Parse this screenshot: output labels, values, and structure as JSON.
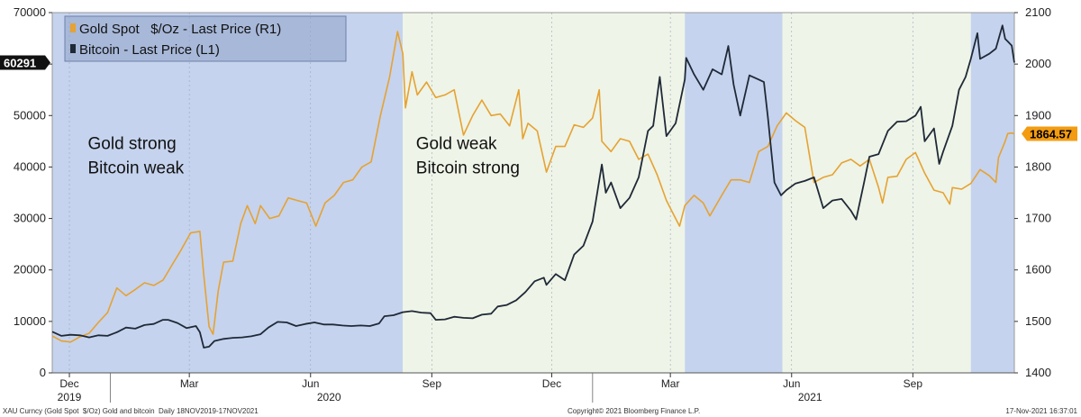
{
  "chart_data": {
    "type": "line",
    "x_range": [
      "2019-11-18",
      "2021-11-17"
    ],
    "left_axis": {
      "ticks": [
        0,
        10000,
        20000,
        30000,
        40000,
        50000,
        60000,
        70000
      ],
      "ylim": [
        0,
        70000
      ]
    },
    "right_axis": {
      "ticks": [
        1400,
        1500,
        1600,
        1700,
        1800,
        1900,
        2000,
        2100
      ],
      "ylim": [
        1400,
        2100
      ]
    },
    "x_tick_labels": [
      {
        "date": "2019-12-01",
        "label": "Dec"
      },
      {
        "date": "2020-03-01",
        "label": "Mar"
      },
      {
        "date": "2020-06-01",
        "label": "Jun"
      },
      {
        "date": "2020-09-01",
        "label": "Sep"
      },
      {
        "date": "2020-12-01",
        "label": "Dec"
      },
      {
        "date": "2021-03-01",
        "label": "Mar"
      },
      {
        "date": "2021-06-01",
        "label": "Jun"
      },
      {
        "date": "2021-09-01",
        "label": "Sep"
      }
    ],
    "year_labels": [
      {
        "date": "2019-12-01",
        "label": "2019"
      },
      {
        "date": "2020-06-15",
        "label": "2020"
      },
      {
        "date": "2021-06-15",
        "label": "2021"
      }
    ],
    "regions": [
      {
        "start": "2019-11-18",
        "end": "2020-08-10",
        "color": "#c5d3ee"
      },
      {
        "start": "2020-08-10",
        "end": "2021-03-12",
        "color": "#eef4e7"
      },
      {
        "start": "2021-03-12",
        "end": "2021-05-25",
        "color": "#c5d3ee"
      },
      {
        "start": "2021-05-25",
        "end": "2021-10-15",
        "color": "#eef4e7"
      },
      {
        "start": "2021-10-15",
        "end": "2021-11-17",
        "color": "#c5d3ee"
      }
    ],
    "annotations": [
      {
        "lines": [
          "Gold strong",
          "Bitcoin weak"
        ],
        "date": "2019-12-15",
        "value": 40000
      },
      {
        "lines": [
          "Gold weak",
          "Bitcoin strong"
        ],
        "date": "2020-08-20",
        "value": 40000
      }
    ],
    "legend": {
      "position": "top-left"
    },
    "series": [
      {
        "name": "Gold Spot   $/Oz - Last Price (R1)",
        "axis": "right",
        "color": "#e6a232",
        "points": [
          [
            "2019-11-18",
            1472
          ],
          [
            "2019-11-25",
            1462
          ],
          [
            "2019-12-02",
            1460
          ],
          [
            "2019-12-09",
            1470
          ],
          [
            "2019-12-16",
            1477
          ],
          [
            "2019-12-23",
            1498
          ],
          [
            "2019-12-30",
            1517
          ],
          [
            "2020-01-06",
            1565
          ],
          [
            "2020-01-13",
            1550
          ],
          [
            "2020-01-20",
            1562
          ],
          [
            "2020-01-27",
            1575
          ],
          [
            "2020-02-03",
            1570
          ],
          [
            "2020-02-10",
            1580
          ],
          [
            "2020-02-17",
            1610
          ],
          [
            "2020-02-24",
            1640
          ],
          [
            "2020-03-02",
            1672
          ],
          [
            "2020-03-09",
            1675
          ],
          [
            "2020-03-12",
            1590
          ],
          [
            "2020-03-16",
            1490
          ],
          [
            "2020-03-19",
            1475
          ],
          [
            "2020-03-23",
            1560
          ],
          [
            "2020-03-27",
            1615
          ],
          [
            "2020-04-03",
            1617
          ],
          [
            "2020-04-09",
            1690
          ],
          [
            "2020-04-14",
            1725
          ],
          [
            "2020-04-20",
            1690
          ],
          [
            "2020-04-24",
            1725
          ],
          [
            "2020-05-01",
            1700
          ],
          [
            "2020-05-08",
            1705
          ],
          [
            "2020-05-15",
            1740
          ],
          [
            "2020-05-22",
            1735
          ],
          [
            "2020-05-29",
            1730
          ],
          [
            "2020-06-05",
            1685
          ],
          [
            "2020-06-12",
            1730
          ],
          [
            "2020-06-19",
            1745
          ],
          [
            "2020-06-26",
            1770
          ],
          [
            "2020-07-03",
            1775
          ],
          [
            "2020-07-10",
            1800
          ],
          [
            "2020-07-17",
            1810
          ],
          [
            "2020-07-24",
            1900
          ],
          [
            "2020-07-31",
            1975
          ],
          [
            "2020-08-06",
            2063
          ],
          [
            "2020-08-10",
            2020
          ],
          [
            "2020-08-12",
            1915
          ],
          [
            "2020-08-17",
            1985
          ],
          [
            "2020-08-21",
            1940
          ],
          [
            "2020-08-28",
            1965
          ],
          [
            "2020-09-04",
            1935
          ],
          [
            "2020-09-11",
            1940
          ],
          [
            "2020-09-18",
            1950
          ],
          [
            "2020-09-25",
            1862
          ],
          [
            "2020-10-02",
            1900
          ],
          [
            "2020-10-09",
            1930
          ],
          [
            "2020-10-16",
            1900
          ],
          [
            "2020-10-23",
            1903
          ],
          [
            "2020-10-30",
            1880
          ],
          [
            "2020-11-06",
            1950
          ],
          [
            "2020-11-09",
            1855
          ],
          [
            "2020-11-13",
            1885
          ],
          [
            "2020-11-20",
            1870
          ],
          [
            "2020-11-27",
            1790
          ],
          [
            "2020-12-04",
            1840
          ],
          [
            "2020-12-11",
            1840
          ],
          [
            "2020-12-18",
            1882
          ],
          [
            "2020-12-25",
            1877
          ],
          [
            "2021-01-01",
            1895
          ],
          [
            "2021-01-06",
            1950
          ],
          [
            "2021-01-08",
            1850
          ],
          [
            "2021-01-15",
            1830
          ],
          [
            "2021-01-22",
            1855
          ],
          [
            "2021-01-29",
            1850
          ],
          [
            "2021-02-05",
            1815
          ],
          [
            "2021-02-12",
            1825
          ],
          [
            "2021-02-19",
            1785
          ],
          [
            "2021-02-26",
            1735
          ],
          [
            "2021-03-05",
            1700
          ],
          [
            "2021-03-08",
            1685
          ],
          [
            "2021-03-12",
            1725
          ],
          [
            "2021-03-19",
            1745
          ],
          [
            "2021-03-26",
            1730
          ],
          [
            "2021-03-31",
            1705
          ],
          [
            "2021-04-09",
            1745
          ],
          [
            "2021-04-16",
            1775
          ],
          [
            "2021-04-23",
            1775
          ],
          [
            "2021-04-30",
            1770
          ],
          [
            "2021-05-07",
            1830
          ],
          [
            "2021-05-14",
            1840
          ],
          [
            "2021-05-21",
            1880
          ],
          [
            "2021-05-28",
            1905
          ],
          [
            "2021-06-04",
            1890
          ],
          [
            "2021-06-11",
            1877
          ],
          [
            "2021-06-18",
            1770
          ],
          [
            "2021-06-25",
            1780
          ],
          [
            "2021-07-02",
            1785
          ],
          [
            "2021-07-09",
            1808
          ],
          [
            "2021-07-16",
            1815
          ],
          [
            "2021-07-23",
            1802
          ],
          [
            "2021-07-30",
            1815
          ],
          [
            "2021-08-06",
            1760
          ],
          [
            "2021-08-09",
            1730
          ],
          [
            "2021-08-13",
            1780
          ],
          [
            "2021-08-20",
            1782
          ],
          [
            "2021-08-27",
            1815
          ],
          [
            "2021-09-03",
            1828
          ],
          [
            "2021-09-10",
            1788
          ],
          [
            "2021-09-17",
            1755
          ],
          [
            "2021-09-24",
            1750
          ],
          [
            "2021-09-29",
            1728
          ],
          [
            "2021-10-01",
            1760
          ],
          [
            "2021-10-08",
            1757
          ],
          [
            "2021-10-15",
            1768
          ],
          [
            "2021-10-22",
            1795
          ],
          [
            "2021-10-29",
            1783
          ],
          [
            "2021-11-03",
            1770
          ],
          [
            "2021-11-05",
            1818
          ],
          [
            "2021-11-10",
            1850
          ],
          [
            "2021-11-12",
            1865
          ],
          [
            "2021-11-15",
            1866
          ],
          [
            "2021-11-17",
            1864.57
          ]
        ]
      },
      {
        "name": "Bitcoin - Last Price (L1)",
        "axis": "left",
        "color": "#1f2937",
        "points": [
          [
            "2019-11-18",
            8000
          ],
          [
            "2019-11-25",
            7200
          ],
          [
            "2019-12-02",
            7400
          ],
          [
            "2019-12-09",
            7300
          ],
          [
            "2019-12-16",
            6900
          ],
          [
            "2019-12-23",
            7300
          ],
          [
            "2019-12-30",
            7200
          ],
          [
            "2020-01-06",
            7900
          ],
          [
            "2020-01-13",
            8800
          ],
          [
            "2020-01-20",
            8600
          ],
          [
            "2020-01-27",
            9300
          ],
          [
            "2020-02-03",
            9500
          ],
          [
            "2020-02-10",
            10300
          ],
          [
            "2020-02-14",
            10300
          ],
          [
            "2020-02-21",
            9700
          ],
          [
            "2020-02-28",
            8700
          ],
          [
            "2020-03-06",
            9100
          ],
          [
            "2020-03-09",
            7900
          ],
          [
            "2020-03-12",
            4900
          ],
          [
            "2020-03-16",
            5100
          ],
          [
            "2020-03-20",
            6200
          ],
          [
            "2020-03-27",
            6600
          ],
          [
            "2020-04-03",
            6800
          ],
          [
            "2020-04-10",
            6900
          ],
          [
            "2020-04-17",
            7100
          ],
          [
            "2020-04-24",
            7500
          ],
          [
            "2020-04-30",
            8800
          ],
          [
            "2020-05-07",
            9900
          ],
          [
            "2020-05-14",
            9800
          ],
          [
            "2020-05-21",
            9100
          ],
          [
            "2020-05-28",
            9500
          ],
          [
            "2020-06-04",
            9800
          ],
          [
            "2020-06-11",
            9400
          ],
          [
            "2020-06-18",
            9400
          ],
          [
            "2020-06-25",
            9200
          ],
          [
            "2020-07-02",
            9100
          ],
          [
            "2020-07-09",
            9200
          ],
          [
            "2020-07-16",
            9100
          ],
          [
            "2020-07-23",
            9600
          ],
          [
            "2020-07-27",
            11000
          ],
          [
            "2020-08-03",
            11200
          ],
          [
            "2020-08-10",
            11800
          ],
          [
            "2020-08-17",
            12000
          ],
          [
            "2020-08-24",
            11700
          ],
          [
            "2020-08-31",
            11600
          ],
          [
            "2020-09-04",
            10300
          ],
          [
            "2020-09-11",
            10400
          ],
          [
            "2020-09-18",
            10900
          ],
          [
            "2020-09-25",
            10700
          ],
          [
            "2020-10-02",
            10600
          ],
          [
            "2020-10-09",
            11300
          ],
          [
            "2020-10-16",
            11500
          ],
          [
            "2020-10-21",
            12900
          ],
          [
            "2020-10-28",
            13200
          ],
          [
            "2020-11-04",
            14100
          ],
          [
            "2020-11-11",
            15700
          ],
          [
            "2020-11-18",
            17800
          ],
          [
            "2020-11-25",
            18500
          ],
          [
            "2020-11-27",
            17100
          ],
          [
            "2020-12-04",
            19200
          ],
          [
            "2020-12-11",
            18000
          ],
          [
            "2020-12-18",
            23000
          ],
          [
            "2020-12-25",
            24700
          ],
          [
            "2021-01-01",
            29400
          ],
          [
            "2021-01-08",
            40500
          ],
          [
            "2021-01-11",
            35000
          ],
          [
            "2021-01-15",
            37000
          ],
          [
            "2021-01-22",
            32000
          ],
          [
            "2021-01-29",
            34000
          ],
          [
            "2021-02-05",
            38000
          ],
          [
            "2021-02-12",
            47000
          ],
          [
            "2021-02-16",
            48000
          ],
          [
            "2021-02-21",
            57500
          ],
          [
            "2021-02-26",
            46000
          ],
          [
            "2021-03-05",
            48500
          ],
          [
            "2021-03-12",
            57000
          ],
          [
            "2021-03-13",
            61200
          ],
          [
            "2021-03-19",
            58000
          ],
          [
            "2021-03-26",
            55000
          ],
          [
            "2021-04-02",
            59000
          ],
          [
            "2021-04-09",
            58000
          ],
          [
            "2021-04-14",
            63500
          ],
          [
            "2021-04-18",
            56000
          ],
          [
            "2021-04-23",
            50000
          ],
          [
            "2021-04-30",
            57800
          ],
          [
            "2021-05-07",
            57000
          ],
          [
            "2021-05-11",
            56500
          ],
          [
            "2021-05-14",
            49700
          ],
          [
            "2021-05-19",
            37000
          ],
          [
            "2021-05-24",
            34500
          ],
          [
            "2021-05-28",
            35500
          ],
          [
            "2021-06-04",
            36800
          ],
          [
            "2021-06-11",
            37300
          ],
          [
            "2021-06-18",
            38000
          ],
          [
            "2021-06-25",
            32000
          ],
          [
            "2021-07-02",
            33500
          ],
          [
            "2021-07-09",
            33800
          ],
          [
            "2021-07-16",
            31500
          ],
          [
            "2021-07-20",
            29800
          ],
          [
            "2021-07-26",
            37000
          ],
          [
            "2021-07-30",
            42000
          ],
          [
            "2021-08-06",
            42500
          ],
          [
            "2021-08-13",
            47000
          ],
          [
            "2021-08-20",
            48800
          ],
          [
            "2021-08-27",
            48900
          ],
          [
            "2021-09-03",
            50000
          ],
          [
            "2021-09-07",
            51700
          ],
          [
            "2021-09-10",
            45000
          ],
          [
            "2021-09-17",
            47500
          ],
          [
            "2021-09-21",
            40600
          ],
          [
            "2021-09-24",
            43000
          ],
          [
            "2021-10-01",
            48000
          ],
          [
            "2021-10-06",
            55000
          ],
          [
            "2021-10-11",
            57500
          ],
          [
            "2021-10-15",
            61000
          ],
          [
            "2021-10-20",
            66000
          ],
          [
            "2021-10-22",
            61000
          ],
          [
            "2021-10-29",
            62000
          ],
          [
            "2021-11-03",
            63000
          ],
          [
            "2021-11-08",
            67500
          ],
          [
            "2021-11-10",
            64900
          ],
          [
            "2021-11-12",
            64400
          ],
          [
            "2021-11-15",
            63600
          ],
          [
            "2021-11-17",
            60291
          ]
        ]
      }
    ],
    "badges": [
      {
        "value": "60291",
        "axis": "left",
        "y": 60291,
        "bg": "#111111",
        "fg": "#ffffff"
      },
      {
        "value": "1864.57",
        "axis": "right",
        "y": 1864.57,
        "bg": "#f39c12",
        "fg": "#000000"
      }
    ],
    "footer": {
      "left": "XAU Curncy (Gold Spot  $/Oz) Gold and bitcoin  Daily 18NOV2019-17NOV2021",
      "center": "Copyright© 2021 Bloomberg Finance L.P.",
      "right": "17-Nov-2021 16:37:01"
    }
  }
}
